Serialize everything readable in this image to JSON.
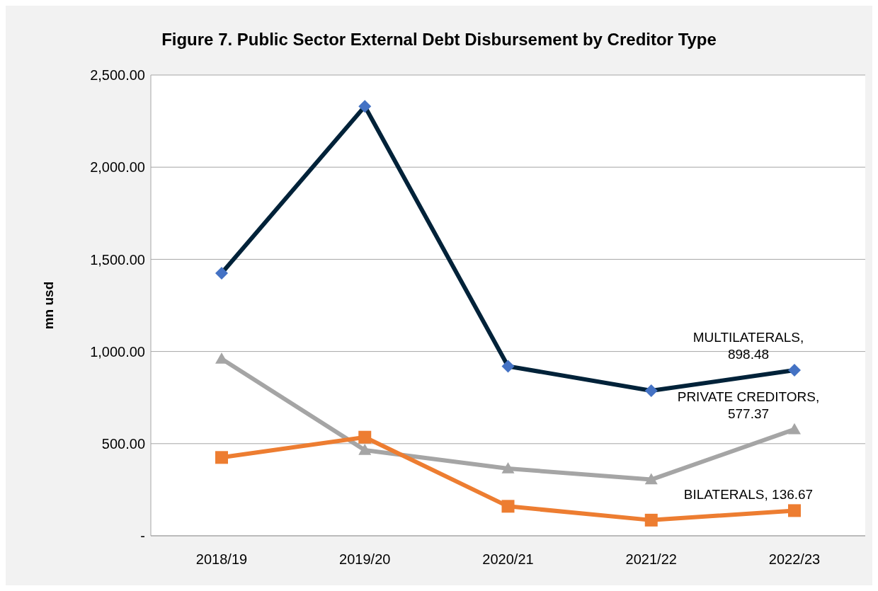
{
  "chart_data": {
    "type": "line",
    "title": "Figure 7. Public Sector External Debt Disbursement by Creditor Type",
    "ylabel": "mn usd",
    "categories": [
      "2018/19",
      "2019/20",
      "2020/21",
      "2021/22",
      "2022/23"
    ],
    "series": [
      {
        "color": "#002239",
        "colors": [
          "#4472c4",
          "#4472c4",
          "#4472c4",
          "#4472c4",
          "#4472c4"
        ],
        "marker": "diamond",
        "values": [
          1425,
          2330,
          920,
          787,
          898.48
        ]
      },
      {
        "color": "#a5a5a5",
        "marker": "triangle",
        "values": [
          960,
          465,
          365,
          305,
          577.37
        ]
      },
      {
        "color": "#ed7d31",
        "marker": "square",
        "values": [
          425,
          535,
          160,
          85,
          136.67
        ]
      }
    ],
    "annotations": [
      {
        "text": "MULTILATERALS, 898.48",
        "x": "2022/23",
        "y": 898.48
      },
      {
        "text": "PRIVATE CREDITORS, 577.37",
        "x": "2022/23",
        "y": 577.37
      },
      {
        "text": "BILATERALS, 136.67",
        "x": "2022/23",
        "y": 136.67
      }
    ],
    "ylim": [
      0,
      2500
    ],
    "yticks": [
      {
        "value": 0,
        "label": "-"
      },
      {
        "value": 500,
        "label": "500.00"
      },
      {
        "value": 1000,
        "label": "1,000.00"
      },
      {
        "value": 1500,
        "label": "1,500.00"
      },
      {
        "value": 2000,
        "label": "2,000.00"
      },
      {
        "value": 2500,
        "label": "2,500.00"
      }
    ],
    "grid": "y",
    "legend": false,
    "line_style": "solid"
  }
}
